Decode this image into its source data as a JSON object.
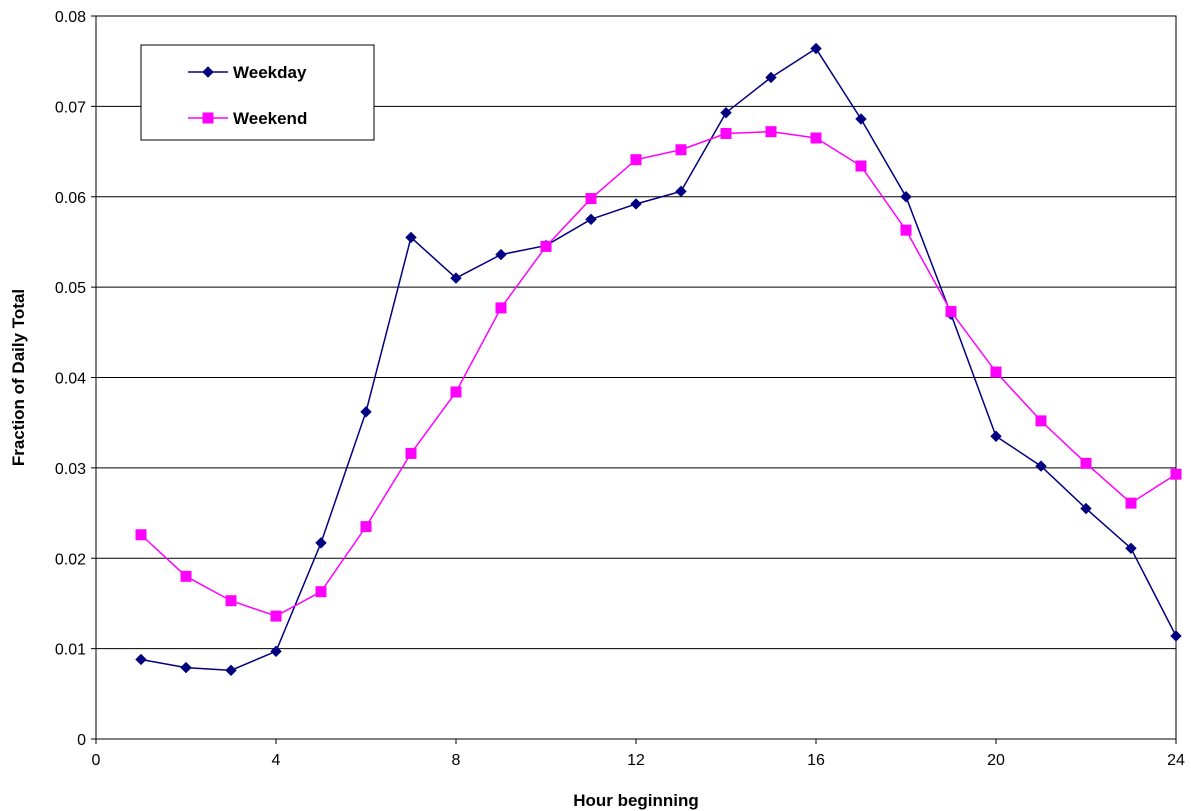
{
  "chart_data": {
    "type": "line",
    "title": "",
    "xlabel": "Hour beginning",
    "ylabel": "Fraction of Daily Total",
    "xlim": [
      0,
      24
    ],
    "ylim": [
      0,
      0.08
    ],
    "x_ticks": [
      "0",
      "4",
      "8",
      "12",
      "16",
      "20",
      "24"
    ],
    "y_ticks": [
      "0",
      "0.01",
      "0.02",
      "0.03",
      "0.04",
      "0.05",
      "0.06",
      "0.07",
      "0.08"
    ],
    "grid": "horizontal",
    "legend_position": "top-left",
    "series": [
      {
        "name": "Weekday",
        "color": "#000080",
        "marker": "diamond",
        "x": [
          1,
          2,
          3,
          4,
          5,
          6,
          7,
          8,
          9,
          10,
          11,
          12,
          13,
          14,
          15,
          16,
          17,
          18,
          19,
          20,
          21,
          22,
          23,
          24
        ],
        "values": [
          0.0088,
          0.0079,
          0.0076,
          0.0097,
          0.0217,
          0.0362,
          0.0555,
          0.051,
          0.0536,
          0.0546,
          0.0575,
          0.0592,
          0.0606,
          0.0693,
          0.0732,
          0.0764,
          0.0686,
          0.06,
          0.047,
          0.0335,
          0.0302,
          0.0255,
          0.0211,
          0.0114
        ]
      },
      {
        "name": "Weekend",
        "color": "#FF00FF",
        "marker": "square",
        "x": [
          1,
          2,
          3,
          4,
          5,
          6,
          7,
          8,
          9,
          10,
          11,
          12,
          13,
          14,
          15,
          16,
          17,
          18,
          19,
          20,
          21,
          22,
          23,
          24
        ],
        "values": [
          0.0226,
          0.018,
          0.0153,
          0.0136,
          0.0163,
          0.0235,
          0.0316,
          0.0384,
          0.0477,
          0.0545,
          0.0598,
          0.0641,
          0.0652,
          0.067,
          0.0672,
          0.0665,
          0.0634,
          0.0563,
          0.0473,
          0.0406,
          0.0352,
          0.0305,
          0.0261,
          0.0293
        ]
      }
    ]
  }
}
